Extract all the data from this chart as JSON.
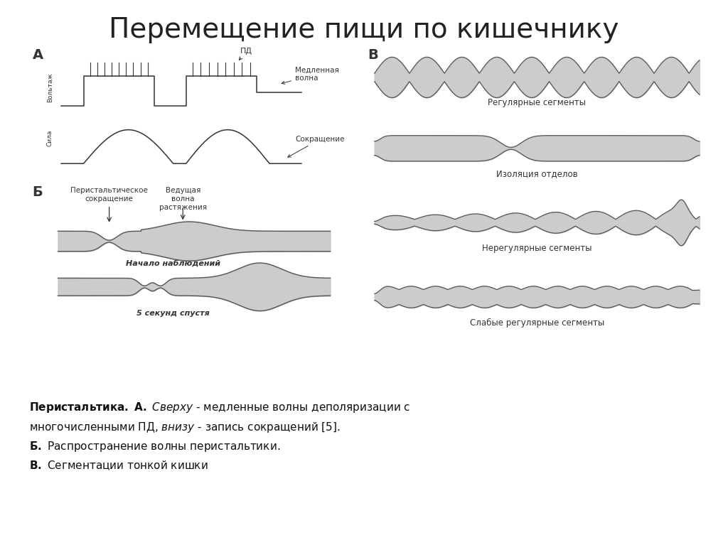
{
  "title": "Перемещение пищи по кишечнику",
  "title_fontsize": 28,
  "bg_color": "#ffffff",
  "label_A": "А",
  "label_B_left": "Б",
  "label_B_right": "В",
  "label_voltage": "Вольтаж",
  "label_force": "Сила",
  "annotation_pd": "ПД",
  "annotation_slow": "Медленная\nволна",
  "annotation_contract": "Сокращение",
  "annotation_peristaltic": "Перистальтическое\nсокращение",
  "annotation_leading": "Ведущая\nволна\nрастяжения",
  "annotation_begin": "Начало наблюдений",
  "annotation_5sec": "5 секунд спустя",
  "label_regular": "Регулярные сегменты",
  "label_isolation": "Изоляция отделов",
  "label_irregular": "Нерегулярные сегменты",
  "label_weak": "Слабые регулярные сегменты",
  "line_color": "#333333",
  "fill_color": "#cccccc",
  "intestine_fill": "#c0c0c0",
  "intestine_edge": "#555555"
}
